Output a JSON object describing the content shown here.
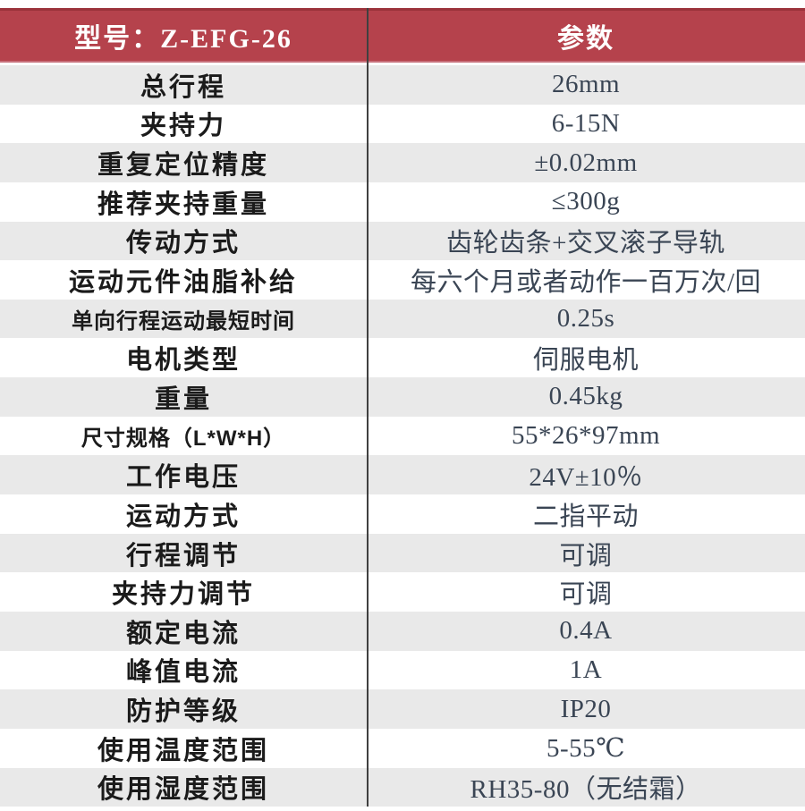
{
  "table": {
    "header": {
      "model_label": "型号：Z-EFG-26",
      "params_label": "参数"
    },
    "colors": {
      "header_bg": "#b5424c",
      "header_top_edge": "#9b333b",
      "header_bottom_edge": "#c7707a",
      "header_text": "#ffffff",
      "row_alt_bg": "#e9e9e9",
      "label_text": "#1b1b1b",
      "value_text": "#3a4554",
      "divider": "#404040"
    },
    "rows": [
      {
        "label": "总行程",
        "value": "26mm"
      },
      {
        "label": "夹持力",
        "value": "6-15N"
      },
      {
        "label": "重复定位精度",
        "value": "±0.02mm"
      },
      {
        "label": "推荐夹持重量",
        "value": "≤300g"
      },
      {
        "label": "传动方式",
        "value": "齿轮齿条+交叉滚子导轨"
      },
      {
        "label": "运动元件油脂补给",
        "value": "每六个月或者动作一百万次/回"
      },
      {
        "label": "单向行程运动最短时间",
        "value": "0.25s"
      },
      {
        "label": "电机类型",
        "value": "伺服电机"
      },
      {
        "label": "重量",
        "value": "0.45kg"
      },
      {
        "label": "尺寸规格（L*W*H）",
        "value": "55*26*97mm"
      },
      {
        "label": "工作电压",
        "value": "24V±10％"
      },
      {
        "label": "运动方式",
        "value": "二指平动"
      },
      {
        "label": "行程调节",
        "value": "可调"
      },
      {
        "label": "夹持力调节",
        "value": "可调"
      },
      {
        "label": "额定电流",
        "value": "0.4A"
      },
      {
        "label": "峰值电流",
        "value": "1A"
      },
      {
        "label": "防护等级",
        "value": "IP20"
      },
      {
        "label": "使用温度范围",
        "value": "5-55℃"
      },
      {
        "label": "使用湿度范围",
        "value": "RH35-80（无结霜）"
      }
    ]
  }
}
